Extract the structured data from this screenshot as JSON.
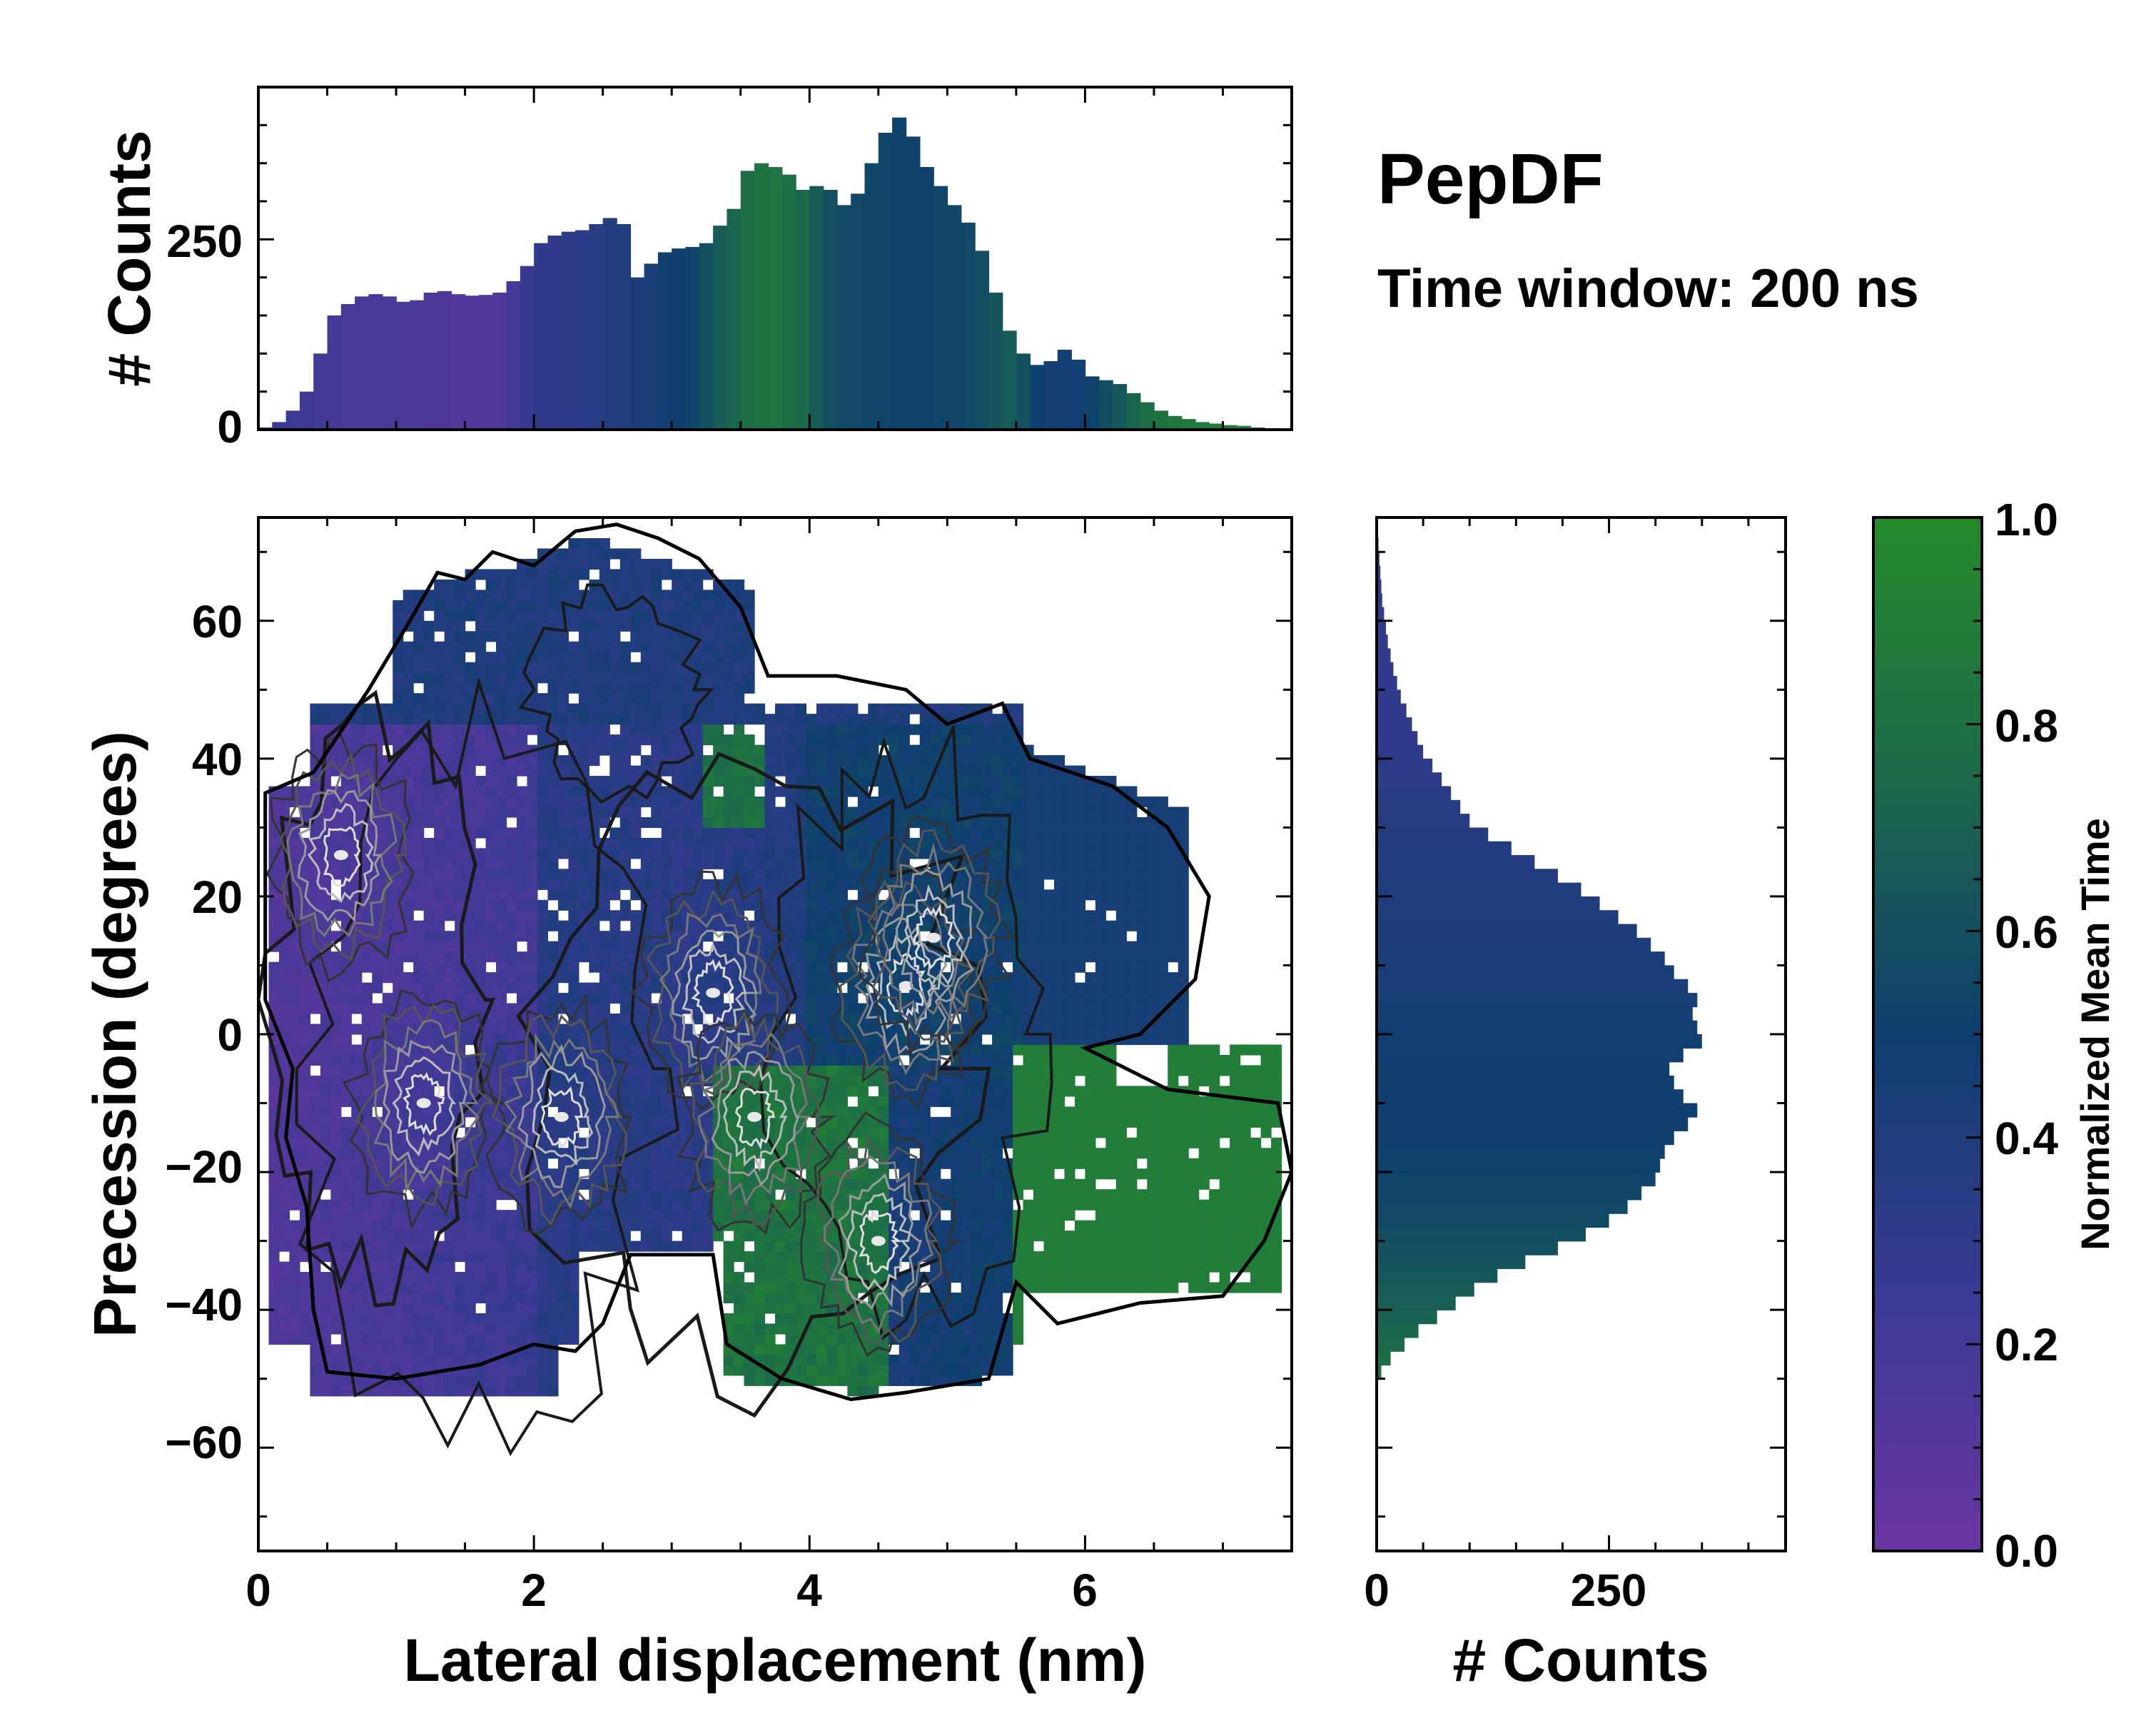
{
  "title": "PepDF",
  "subtitle": "Time window: 200 ns",
  "colors": {
    "cmap_low": "#6a35a3",
    "cmap_mid": "#0e3f6e",
    "cmap_high": "#248a2a"
  },
  "chart_data": [
    {
      "name": "top-marginal-histogram",
      "type": "bar",
      "xlim": [
        0,
        7.5
      ],
      "ylim": [
        0,
        450
      ],
      "ylabel": "# Counts",
      "yticks": [
        0,
        250
      ],
      "ytick_labels": [
        "0",
        "250"
      ],
      "x": [
        0.0,
        0.1,
        0.2,
        0.3,
        0.4,
        0.5,
        0.6,
        0.7,
        0.8,
        0.9,
        1.0,
        1.1,
        1.2,
        1.3,
        1.4,
        1.5,
        1.6,
        1.7,
        1.8,
        1.9,
        2.0,
        2.1,
        2.2,
        2.3,
        2.4,
        2.5,
        2.6,
        2.7,
        2.8,
        2.9,
        3.0,
        3.1,
        3.2,
        3.3,
        3.4,
        3.5,
        3.6,
        3.7,
        3.8,
        3.9,
        4.0,
        4.1,
        4.2,
        4.3,
        4.4,
        4.5,
        4.6,
        4.7,
        4.8,
        4.9,
        5.0,
        5.1,
        5.2,
        5.3,
        5.4,
        5.5,
        5.6,
        5.7,
        5.8,
        5.9,
        6.0,
        6.1,
        6.2,
        6.3,
        6.4,
        6.5,
        6.6,
        6.7,
        6.8,
        6.9,
        7.0,
        7.1,
        7.2,
        7.3,
        7.4
      ],
      "values": [
        3,
        10,
        25,
        50,
        100,
        150,
        165,
        175,
        178,
        175,
        168,
        170,
        180,
        182,
        178,
        176,
        177,
        180,
        195,
        215,
        245,
        255,
        260,
        262,
        270,
        278,
        270,
        200,
        218,
        233,
        238,
        240,
        245,
        268,
        290,
        340,
        350,
        345,
        335,
        315,
        320,
        315,
        295,
        310,
        350,
        390,
        410,
        385,
        345,
        320,
        295,
        272,
        235,
        180,
        130,
        100,
        85,
        90,
        105,
        92,
        70,
        65,
        60,
        48,
        36,
        25,
        18,
        14,
        10,
        8,
        6,
        5,
        3,
        2,
        1
      ],
      "mean_time": [
        0.25,
        0.25,
        0.24,
        0.23,
        0.22,
        0.2,
        0.19,
        0.18,
        0.18,
        0.17,
        0.17,
        0.16,
        0.15,
        0.15,
        0.14,
        0.14,
        0.13,
        0.13,
        0.2,
        0.27,
        0.3,
        0.31,
        0.32,
        0.34,
        0.36,
        0.38,
        0.4,
        0.42,
        0.44,
        0.47,
        0.5,
        0.53,
        0.6,
        0.66,
        0.72,
        0.78,
        0.82,
        0.83,
        0.8,
        0.74,
        0.66,
        0.6,
        0.56,
        0.55,
        0.54,
        0.53,
        0.52,
        0.52,
        0.52,
        0.53,
        0.54,
        0.55,
        0.58,
        0.63,
        0.66,
        0.6,
        0.5,
        0.46,
        0.46,
        0.48,
        0.52,
        0.58,
        0.64,
        0.72,
        0.78,
        0.82,
        0.85,
        0.87,
        0.88,
        0.9,
        0.9,
        0.9,
        0.9,
        0.9,
        0.9
      ]
    },
    {
      "name": "central-2d-histogram",
      "type": "heatmap",
      "xlabel": "Lateral displacement (nm)",
      "ylabel": "Precession (degrees)",
      "xlim": [
        0,
        7.5
      ],
      "ylim": [
        -75,
        75
      ],
      "xticks": [
        0,
        2,
        4,
        6
      ],
      "xtick_labels": [
        "0",
        "2",
        "4",
        "6"
      ],
      "yticks": [
        -60,
        -40,
        -20,
        0,
        20,
        40,
        60
      ],
      "ytick_labels": [
        "−60",
        "−40",
        "−20",
        "0",
        "20",
        "40",
        "60"
      ],
      "color_encoding": "Normalized Mean Time (0–1)",
      "density_peaks": [
        {
          "x": 0.6,
          "y": 26
        },
        {
          "x": 1.2,
          "y": -10
        },
        {
          "x": 2.2,
          "y": -12
        },
        {
          "x": 3.3,
          "y": 6
        },
        {
          "x": 3.6,
          "y": -12
        },
        {
          "x": 4.7,
          "y": 7
        },
        {
          "x": 4.9,
          "y": 14
        },
        {
          "x": 4.5,
          "y": -30
        }
      ]
    },
    {
      "name": "right-marginal-histogram",
      "type": "bar",
      "orientation": "horizontal",
      "ylim": [
        -75,
        75
      ],
      "xlim": [
        0,
        440
      ],
      "xlabel": "# Counts",
      "xticks": [
        0,
        250
      ],
      "xtick_labels": [
        "0",
        "250"
      ],
      "y": [
        -50,
        -48,
        -46,
        -44,
        -42,
        -40,
        -38,
        -36,
        -34,
        -32,
        -30,
        -28,
        -26,
        -24,
        -22,
        -20,
        -18,
        -16,
        -14,
        -12,
        -10,
        -8,
        -6,
        -4,
        -2,
        0,
        2,
        4,
        6,
        8,
        10,
        12,
        14,
        16,
        18,
        20,
        22,
        24,
        26,
        28,
        30,
        32,
        34,
        36,
        38,
        40,
        42,
        44,
        46,
        48,
        50,
        52,
        54,
        56,
        58,
        60,
        62,
        64,
        66,
        68,
        70,
        72
      ],
      "values": [
        5,
        15,
        30,
        45,
        65,
        85,
        105,
        130,
        160,
        195,
        225,
        250,
        270,
        285,
        300,
        305,
        310,
        320,
        335,
        345,
        330,
        320,
        315,
        330,
        350,
        345,
        340,
        345,
        335,
        320,
        310,
        295,
        280,
        260,
        240,
        220,
        195,
        170,
        145,
        120,
        100,
        90,
        80,
        70,
        60,
        50,
        44,
        38,
        32,
        26,
        22,
        18,
        15,
        12,
        10,
        8,
        6,
        5,
        4,
        3,
        2,
        1
      ],
      "mean_time": [
        0.8,
        0.78,
        0.75,
        0.72,
        0.7,
        0.68,
        0.66,
        0.64,
        0.62,
        0.6,
        0.58,
        0.56,
        0.55,
        0.54,
        0.53,
        0.52,
        0.51,
        0.5,
        0.5,
        0.5,
        0.5,
        0.5,
        0.49,
        0.48,
        0.48,
        0.47,
        0.46,
        0.45,
        0.44,
        0.44,
        0.43,
        0.42,
        0.42,
        0.41,
        0.4,
        0.4,
        0.39,
        0.38,
        0.38,
        0.37,
        0.36,
        0.35,
        0.34,
        0.33,
        0.32,
        0.31,
        0.3,
        0.3,
        0.3,
        0.3,
        0.3,
        0.3,
        0.3,
        0.3,
        0.3,
        0.3,
        0.3,
        0.3,
        0.3,
        0.3,
        0.3,
        0.3
      ]
    },
    {
      "name": "colorbar",
      "type": "colorbar",
      "label": "Normalized Mean Time",
      "range": [
        0.0,
        1.0
      ],
      "ticks": [
        0.0,
        0.2,
        0.4,
        0.6,
        0.8,
        1.0
      ],
      "tick_labels": [
        "0.0",
        "0.2",
        "0.4",
        "0.6",
        "0.8",
        "1.0"
      ]
    }
  ]
}
